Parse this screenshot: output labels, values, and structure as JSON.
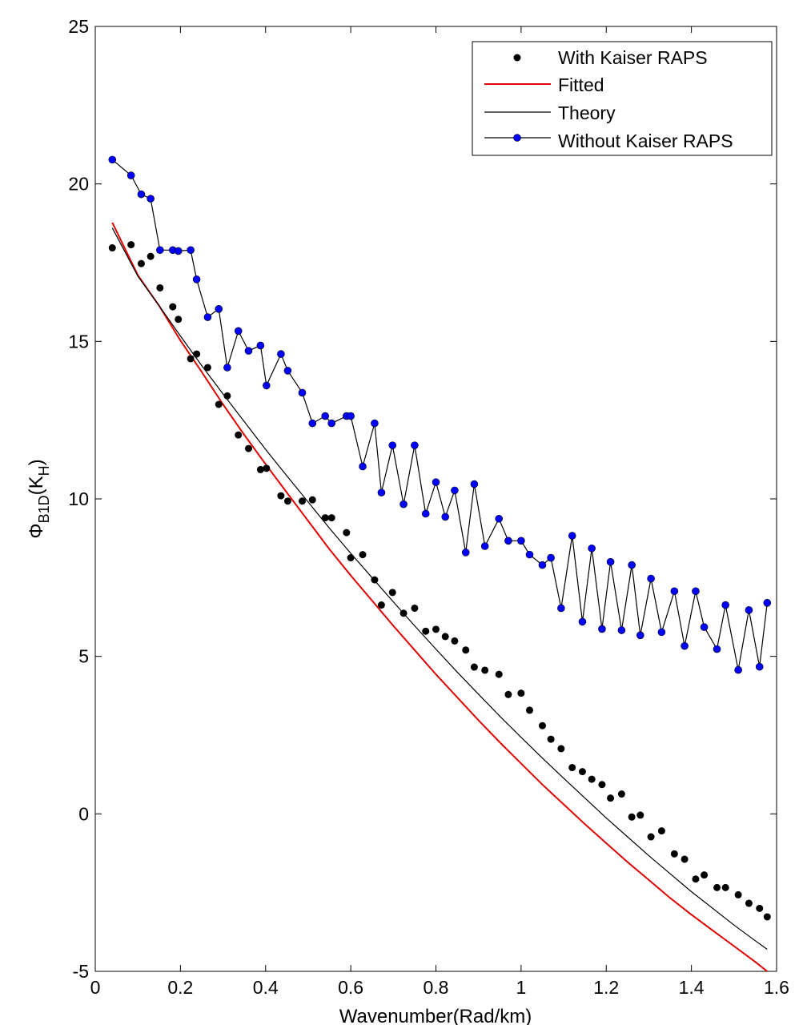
{
  "chart_data": {
    "type": "line",
    "title": "",
    "xlabel": "Wavenumber(Rad/km)",
    "ylabel": {
      "base": "Φ",
      "sub1": "B1D",
      "mid": "(K",
      "sub2": "H",
      "end": ")"
    },
    "xlim": [
      0,
      1.6
    ],
    "ylim": [
      -5,
      25
    ],
    "xticks": [
      "0",
      "0.2",
      "0.4",
      "0.6",
      "0.8",
      "1",
      "1.2",
      "1.4",
      "1.6"
    ],
    "yticks": [
      "-5",
      "0",
      "5",
      "10",
      "15",
      "20",
      "25"
    ],
    "grid": false,
    "legend_position": "top-right",
    "colors": {
      "with": "#000000",
      "fitted": "#e00000",
      "theory": "#000000",
      "without_marker": "#0000ff",
      "without_line": "#000000"
    },
    "series": [
      {
        "name": "With Kaiser RAPS",
        "style": "markers",
        "x": [
          0.04,
          0.084,
          0.108,
          0.13,
          0.152,
          0.182,
          0.195,
          0.224,
          0.238,
          0.264,
          0.29,
          0.31,
          0.336,
          0.36,
          0.388,
          0.402,
          0.436,
          0.452,
          0.486,
          0.51,
          0.54,
          0.555,
          0.59,
          0.6,
          0.628,
          0.656,
          0.672,
          0.698,
          0.724,
          0.75,
          0.776,
          0.8,
          0.822,
          0.844,
          0.87,
          0.89,
          0.915,
          0.948,
          0.97,
          1.0,
          1.02,
          1.05,
          1.07,
          1.094,
          1.12,
          1.144,
          1.166,
          1.19,
          1.21,
          1.236,
          1.26,
          1.28,
          1.305,
          1.33,
          1.36,
          1.384,
          1.41,
          1.43,
          1.46,
          1.48,
          1.51,
          1.535,
          1.56,
          1.578
        ],
        "y": [
          17.97,
          18.07,
          17.47,
          17.7,
          16.7,
          16.1,
          15.7,
          14.45,
          14.6,
          14.17,
          13.0,
          13.27,
          12.03,
          11.6,
          10.93,
          10.97,
          10.1,
          9.93,
          9.93,
          9.97,
          9.4,
          9.4,
          8.93,
          8.13,
          8.23,
          7.43,
          6.63,
          7.03,
          6.37,
          6.53,
          5.8,
          5.86,
          5.63,
          5.49,
          5.2,
          4.66,
          4.56,
          4.43,
          3.79,
          3.83,
          3.29,
          2.8,
          2.37,
          2.07,
          1.47,
          1.34,
          1.1,
          0.93,
          0.5,
          0.63,
          -0.1,
          -0.04,
          -0.73,
          -0.54,
          -1.27,
          -1.44,
          -2.07,
          -1.94,
          -2.34,
          -2.34,
          -2.57,
          -2.84,
          -3.0,
          -3.27
        ]
      },
      {
        "name": "Fitted",
        "style": "line",
        "x": [
          0.04,
          0.1,
          0.15,
          0.2,
          0.25,
          0.3,
          0.35,
          0.4,
          0.45,
          0.5,
          0.55,
          0.6,
          0.65,
          0.7,
          0.75,
          0.8,
          0.85,
          0.9,
          0.95,
          1.0,
          1.05,
          1.1,
          1.15,
          1.2,
          1.25,
          1.3,
          1.35,
          1.4,
          1.45,
          1.5,
          1.55,
          1.578
        ],
        "y": [
          18.77,
          17.1,
          16.13,
          15.03,
          14.03,
          13.0,
          12.03,
          11.1,
          10.2,
          9.3,
          8.4,
          7.57,
          6.77,
          5.97,
          5.2,
          4.43,
          3.7,
          2.97,
          2.27,
          1.6,
          0.93,
          0.3,
          -0.33,
          -0.93,
          -1.53,
          -2.1,
          -2.67,
          -3.2,
          -3.7,
          -4.2,
          -4.7,
          -5.0
        ]
      },
      {
        "name": "Theory",
        "style": "line",
        "x": [
          0.04,
          0.1,
          0.15,
          0.2,
          0.25,
          0.3,
          0.35,
          0.4,
          0.45,
          0.5,
          0.55,
          0.6,
          0.65,
          0.7,
          0.75,
          0.8,
          0.85,
          0.9,
          0.95,
          1.0,
          1.05,
          1.1,
          1.15,
          1.2,
          1.25,
          1.3,
          1.35,
          1.4,
          1.45,
          1.5,
          1.55,
          1.578
        ],
        "y": [
          18.6,
          17.07,
          16.13,
          15.17,
          14.23,
          13.33,
          12.45,
          11.57,
          10.73,
          9.9,
          9.07,
          8.27,
          7.5,
          6.73,
          5.97,
          5.23,
          4.5,
          3.8,
          3.1,
          2.43,
          1.77,
          1.13,
          0.5,
          -0.13,
          -0.73,
          -1.33,
          -1.9,
          -2.47,
          -3.0,
          -3.53,
          -4.03,
          -4.3
        ]
      },
      {
        "name": "Without Kaiser RAPS",
        "style": "line+markers",
        "x": [
          0.04,
          0.084,
          0.108,
          0.13,
          0.152,
          0.182,
          0.195,
          0.224,
          0.238,
          0.264,
          0.29,
          0.31,
          0.336,
          0.36,
          0.388,
          0.402,
          0.436,
          0.452,
          0.486,
          0.51,
          0.54,
          0.555,
          0.59,
          0.6,
          0.628,
          0.656,
          0.672,
          0.698,
          0.724,
          0.75,
          0.776,
          0.8,
          0.822,
          0.844,
          0.87,
          0.89,
          0.915,
          0.948,
          0.97,
          1.0,
          1.02,
          1.05,
          1.07,
          1.094,
          1.12,
          1.144,
          1.166,
          1.19,
          1.21,
          1.236,
          1.26,
          1.28,
          1.305,
          1.33,
          1.36,
          1.384,
          1.41,
          1.43,
          1.46,
          1.48,
          1.51,
          1.535,
          1.56,
          1.578
        ],
        "y": [
          20.77,
          20.27,
          19.67,
          19.53,
          17.9,
          17.9,
          17.87,
          17.9,
          16.97,
          15.77,
          16.03,
          14.17,
          15.33,
          14.7,
          14.87,
          13.6,
          14.6,
          14.07,
          13.37,
          12.4,
          12.63,
          12.4,
          12.63,
          12.63,
          11.03,
          12.4,
          10.2,
          11.7,
          9.83,
          11.7,
          9.53,
          10.53,
          9.43,
          10.27,
          8.3,
          10.47,
          8.5,
          9.37,
          8.67,
          8.67,
          8.23,
          7.9,
          8.13,
          6.53,
          8.83,
          6.1,
          8.43,
          5.87,
          8.0,
          5.83,
          7.9,
          5.67,
          7.47,
          5.77,
          7.07,
          5.33,
          7.07,
          5.93,
          5.23,
          6.63,
          4.57,
          6.47,
          4.67,
          6.7
        ]
      }
    ]
  }
}
